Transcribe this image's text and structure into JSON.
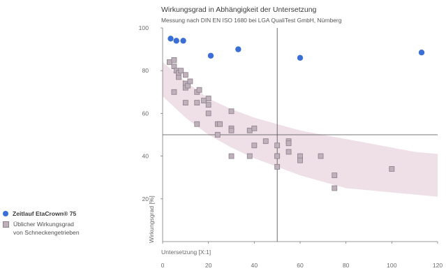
{
  "chart_data": {
    "type": "scatter",
    "title": "Wirkungsgrad in Abhängigkeit der Untersetzung",
    "subtitle": "Messung nach DIN EN ISO 1680 bei LGA QualiTest GmbH, Nürnberg",
    "xlabel": "Untersetzung [X:1]",
    "ylabel": "Wirkungsgrad [%]",
    "xlim": [
      0,
      120
    ],
    "ylim": [
      0,
      100
    ],
    "xticks": [
      0,
      20,
      40,
      60,
      80,
      100,
      120
    ],
    "yticks": [
      20,
      40,
      60,
      80,
      100
    ],
    "reference_lines": {
      "x": 50,
      "y": 50
    },
    "grid": false,
    "legend_position": "left",
    "colors": {
      "etacrown": "#3b6fd6",
      "worm": "#bfb1bb",
      "worm_border": "#8c7f88",
      "band": "#e8d6de"
    },
    "band": {
      "x": [
        0,
        10,
        20,
        30,
        40,
        50,
        60,
        70,
        80,
        90,
        100,
        110,
        120
      ],
      "upper": [
        84,
        75,
        67,
        62,
        58,
        55,
        52,
        50,
        48,
        46,
        44,
        42,
        41
      ],
      "lower": [
        68,
        58,
        50,
        44,
        39,
        35,
        31,
        28,
        25,
        24,
        23,
        22,
        21
      ]
    },
    "series": [
      {
        "name": "Zeitlauf EtaCrown® 75",
        "marker": "circle",
        "points": [
          [
            3.5,
            95
          ],
          [
            6,
            94
          ],
          [
            9,
            94
          ],
          [
            21,
            87
          ],
          [
            33,
            90
          ],
          [
            60,
            86
          ],
          [
            113,
            88.5
          ]
        ]
      },
      {
        "name": "Üblicher Wirkungsgrad von Schneckengetrieben",
        "marker": "square",
        "points": [
          [
            3,
            84
          ],
          [
            5,
            85
          ],
          [
            5,
            82
          ],
          [
            6,
            80
          ],
          [
            7,
            77
          ],
          [
            7,
            79
          ],
          [
            8,
            80
          ],
          [
            5,
            70
          ],
          [
            10,
            78
          ],
          [
            10,
            74
          ],
          [
            10,
            72
          ],
          [
            11,
            73
          ],
          [
            12,
            75
          ],
          [
            10,
            65
          ],
          [
            15,
            70
          ],
          [
            16,
            71
          ],
          [
            15,
            65
          ],
          [
            18,
            66
          ],
          [
            20,
            67
          ],
          [
            20,
            64
          ],
          [
            20,
            60
          ],
          [
            15,
            55
          ],
          [
            24,
            55
          ],
          [
            25,
            55
          ],
          [
            24,
            50
          ],
          [
            30,
            61
          ],
          [
            30,
            53
          ],
          [
            30,
            52
          ],
          [
            30,
            40
          ],
          [
            38,
            52
          ],
          [
            38,
            40
          ],
          [
            40,
            53
          ],
          [
            40,
            45
          ],
          [
            45,
            47
          ],
          [
            50,
            45
          ],
          [
            50,
            40
          ],
          [
            50,
            40
          ],
          [
            50,
            35
          ],
          [
            55,
            47
          ],
          [
            55,
            46
          ],
          [
            55,
            42
          ],
          [
            60,
            40
          ],
          [
            60,
            38
          ],
          [
            69,
            40
          ],
          [
            75,
            31
          ],
          [
            75,
            25
          ],
          [
            100,
            34
          ]
        ]
      }
    ]
  },
  "legend": {
    "etacrown_label": "Zeitlauf EtaCrown® 75",
    "worm_label_line1": "Üblicher Wirkungsgrad",
    "worm_label_line2": "von Schneckengetrieben"
  }
}
